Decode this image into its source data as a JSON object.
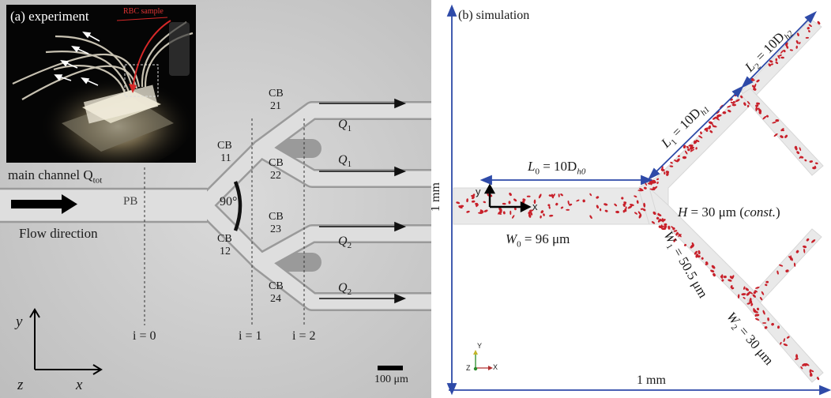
{
  "colors": {
    "micrograph_bg": "#cfcfcf",
    "channel_fill": "#dedede",
    "channel_wall": "#9a9a9a",
    "arrow_blue": "#2e4aa8",
    "rbc_red": "#c8202a",
    "inset_bg": "#050505",
    "sample_arrow": "#d62828"
  },
  "panel_a": {
    "inset_label": "(a) experiment",
    "sample_label": "RBC sample",
    "main_channel_label": "main channel Q",
    "main_channel_sub": "tot",
    "flow_direction": "Flow direction",
    "pb": "PB",
    "angle": "90°",
    "bifurcations": {
      "cb11_a": "CB",
      "cb11_b": "11",
      "cb12_a": "CB",
      "cb12_b": "12",
      "cb21_a": "CB",
      "cb21_b": "21",
      "cb22_a": "CB",
      "cb22_b": "22",
      "cb23_a": "CB",
      "cb23_b": "23",
      "cb24_a": "CB",
      "cb24_b": "24"
    },
    "flows": {
      "q": "Q",
      "s1": "1",
      "s2": "2"
    },
    "generations": {
      "i0": "i = 0",
      "i1": "i = 1",
      "i2": "i = 2"
    },
    "axes": {
      "y": "y",
      "x": "x",
      "z": "z"
    },
    "scale_bar": "100 μm",
    "icons": [
      "flow-direction-arrow-icon",
      "axis-triad-icon"
    ]
  },
  "panel_b": {
    "label": "(b) simulation",
    "l0": "L",
    "l0_sub": "0",
    "l0_eq": " = 10D",
    "l0_h": "h0",
    "l1": "L",
    "l1_sub": "1",
    "l1_eq": " = 10D",
    "l1_h": "h1",
    "l2": "L",
    "l2_sub": "2",
    "l2_eq": " = 10D",
    "l2_h": "h2",
    "w0": "W",
    "w0_sub": "0",
    "w0_eq": " = 96 μm",
    "w1": "W",
    "w1_sub": "1",
    "w1_eq": " = 50.5 μm",
    "w2": "W",
    "w2_sub": "2",
    "w2_eq": " = 30 μm",
    "height_pre": "H",
    "height_eq": " = 30 μm (",
    "height_const": "const.",
    "height_close": ")",
    "dim_vertical": "1 mm",
    "dim_horizontal": "1 mm",
    "local_x": "x",
    "local_y": "y",
    "orient_y": "Y",
    "orient_z": "Z",
    "orient_x": "X"
  }
}
